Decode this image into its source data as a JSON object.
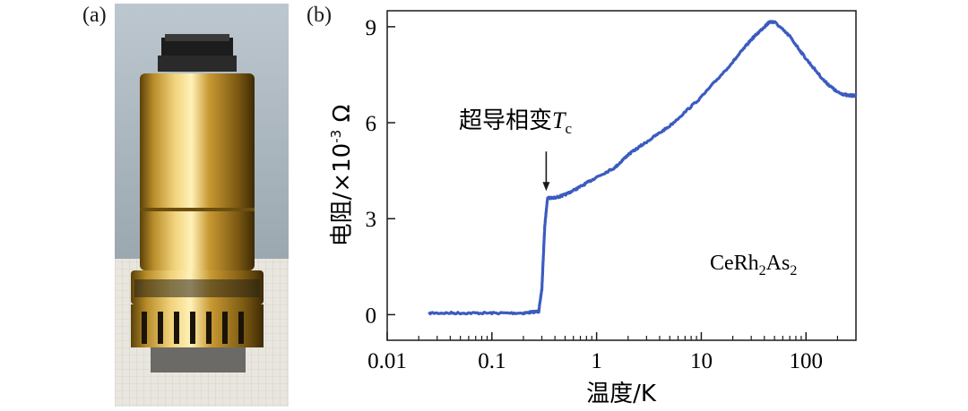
{
  "panel_a": {
    "label": "(a)",
    "photo": "photo of cylindrical gold-plated sample holder on graph paper"
  },
  "panel_b": {
    "label": "(b)"
  },
  "chart_data": {
    "type": "line",
    "xlabel": "温度/K",
    "ylabel": "电阻/×10⁻³ Ω",
    "ylabel_main": "电阻/×10",
    "ylabel_exp": "-3",
    "ylabel_unit": " Ω",
    "x_scale": "log",
    "xlim": [
      0.01,
      300
    ],
    "ylim": [
      -0.8,
      9.5
    ],
    "x_ticks": [
      0.01,
      0.1,
      1,
      10,
      100
    ],
    "x_tick_labels": [
      "0.01",
      "0.1",
      "1",
      "10",
      "100"
    ],
    "y_ticks": [
      0,
      3,
      6,
      9
    ],
    "y_tick_labels": [
      "0",
      "3",
      "6",
      "9"
    ],
    "grid": false,
    "line_color": "#3b5bbf",
    "annotation": {
      "text_main": "超导相变",
      "text_symbol": "T",
      "text_subscript": "c",
      "x": 0.33,
      "y": 3.7
    },
    "material": {
      "text": "CeRh₂As₂",
      "parts": [
        "CeRh",
        "2",
        "As",
        "2"
      ]
    },
    "series": [
      {
        "x": [
          0.025,
          0.05,
          0.1,
          0.2,
          0.28,
          0.3,
          0.32,
          0.34,
          0.4,
          0.5,
          0.7,
          1.0,
          1.5,
          2,
          3,
          5,
          10,
          20,
          30,
          40,
          45,
          50,
          70,
          100,
          150,
          200,
          250,
          300
        ],
        "y": [
          0.05,
          0.05,
          0.05,
          0.05,
          0.1,
          0.8,
          2.8,
          3.65,
          3.65,
          3.75,
          4.0,
          4.3,
          4.6,
          5.0,
          5.4,
          5.9,
          6.8,
          7.9,
          8.6,
          9.0,
          9.15,
          9.15,
          8.7,
          8.0,
          7.3,
          6.95,
          6.85,
          6.85
        ]
      }
    ]
  }
}
